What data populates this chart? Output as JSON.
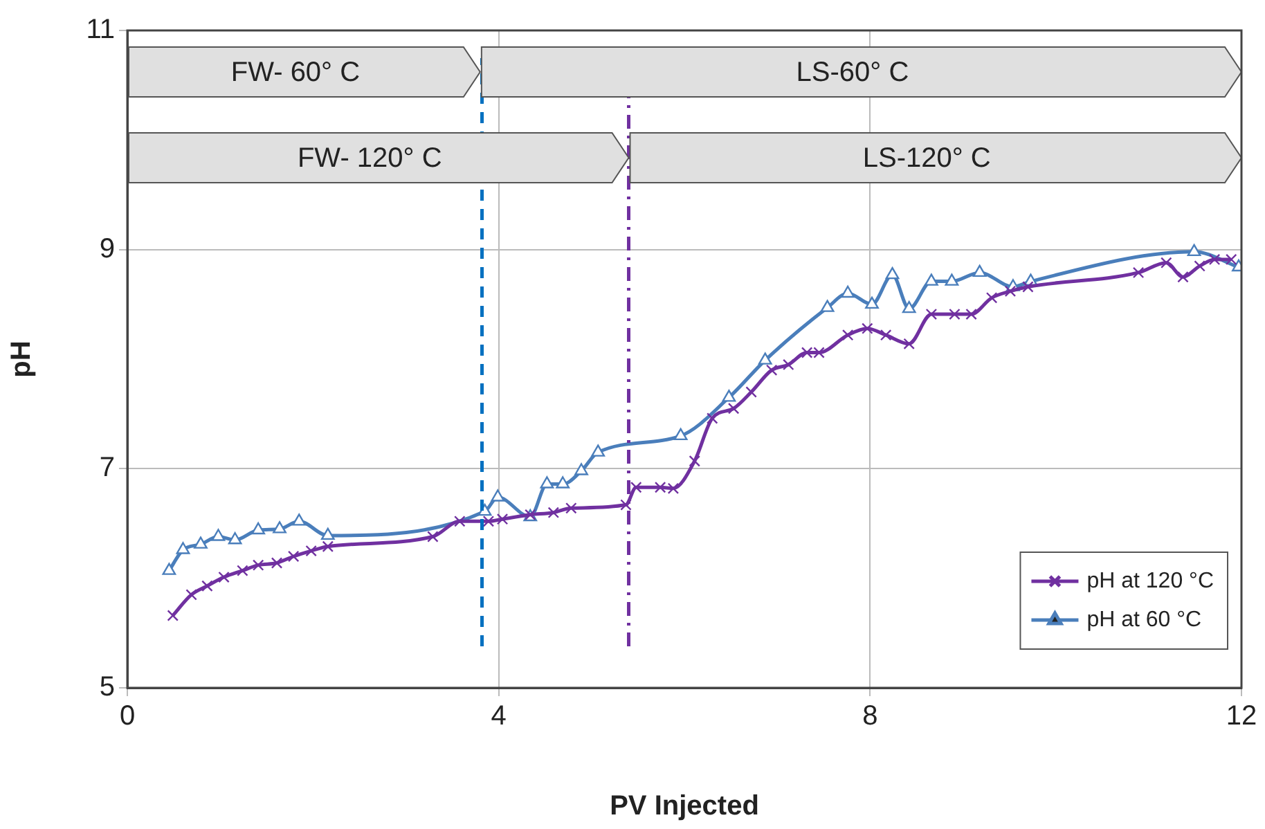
{
  "chart_data": {
    "type": "line",
    "xlabel": "PV Injected",
    "ylabel": "pH",
    "xlim": [
      0,
      12
    ],
    "xticks": [
      0,
      4,
      8,
      12
    ],
    "ylim": [
      5,
      11
    ],
    "yticks": [
      5,
      7,
      9,
      11
    ],
    "grid": true,
    "legend": "bottom right",
    "line_style": "solid",
    "series": [
      {
        "name": "pH at 120 °C",
        "color": "#7030a0",
        "marker": "cross",
        "x": [
          0.49,
          0.69,
          0.86,
          1.04,
          1.24,
          1.41,
          1.61,
          1.79,
          1.98,
          2.16,
          3.29,
          3.58,
          3.89,
          4.04,
          4.34,
          4.59,
          4.78,
          5.37,
          5.48,
          5.74,
          5.88,
          6.11,
          6.3,
          6.53,
          6.72,
          6.94,
          7.12,
          7.32,
          7.45,
          7.76,
          7.97,
          8.17,
          8.42,
          8.66,
          8.91,
          9.09,
          9.31,
          9.51,
          9.7,
          10.89,
          11.19,
          11.37,
          11.55,
          11.71,
          11.89
        ],
        "values": [
          5.66,
          5.85,
          5.93,
          6.01,
          6.07,
          6.12,
          6.14,
          6.2,
          6.25,
          6.29,
          6.38,
          6.52,
          6.52,
          6.54,
          6.58,
          6.6,
          6.64,
          6.67,
          6.83,
          6.83,
          6.82,
          7.07,
          7.46,
          7.55,
          7.7,
          7.9,
          7.95,
          8.06,
          8.06,
          8.22,
          8.28,
          8.22,
          8.14,
          8.41,
          8.41,
          8.41,
          8.56,
          8.62,
          8.66,
          8.79,
          8.88,
          8.75,
          8.85,
          8.91,
          8.91
        ]
      },
      {
        "name": "pH at 60 °C",
        "color": "#4a7ebb",
        "marker": "triangle",
        "x": [
          0.45,
          0.6,
          0.79,
          0.98,
          1.16,
          1.41,
          1.64,
          1.85,
          2.16,
          3.85,
          3.99,
          4.34,
          4.52,
          4.69,
          4.89,
          5.07,
          5.96,
          6.48,
          6.87,
          7.54,
          7.76,
          8.02,
          8.24,
          8.42,
          8.66,
          8.88,
          9.18,
          9.54,
          9.73,
          11.49,
          11.97
        ],
        "values": [
          6.07,
          6.26,
          6.31,
          6.38,
          6.35,
          6.44,
          6.45,
          6.52,
          6.39,
          6.61,
          6.74,
          6.56,
          6.86,
          6.86,
          6.98,
          7.15,
          7.3,
          7.65,
          7.99,
          8.47,
          8.6,
          8.5,
          8.77,
          8.46,
          8.71,
          8.71,
          8.79,
          8.66,
          8.71,
          8.98,
          8.84
        ]
      }
    ],
    "ref_lines": [
      {
        "axis": "x",
        "value": 3.82,
        "color": "#0070c0",
        "line_style": "dashed"
      },
      {
        "axis": "x",
        "value": 5.4,
        "color": "#7030a0",
        "line_style": "dashdot"
      }
    ],
    "bands": [
      {
        "axis": "x",
        "from": 0,
        "to": 3.8,
        "label": "FW- 60° C",
        "color": "#e0e0e0"
      },
      {
        "axis": "x",
        "from": 3.8,
        "to": 12,
        "label": "LS-60° C",
        "color": "#e0e0e0"
      },
      {
        "axis": "x",
        "from": 0,
        "to": 5.4,
        "label": "FW- 120° C",
        "color": "#e0e0e0"
      },
      {
        "axis": "x",
        "from": 5.4,
        "to": 12,
        "label": "LS-120° C",
        "color": "#e0e0e0"
      }
    ]
  }
}
